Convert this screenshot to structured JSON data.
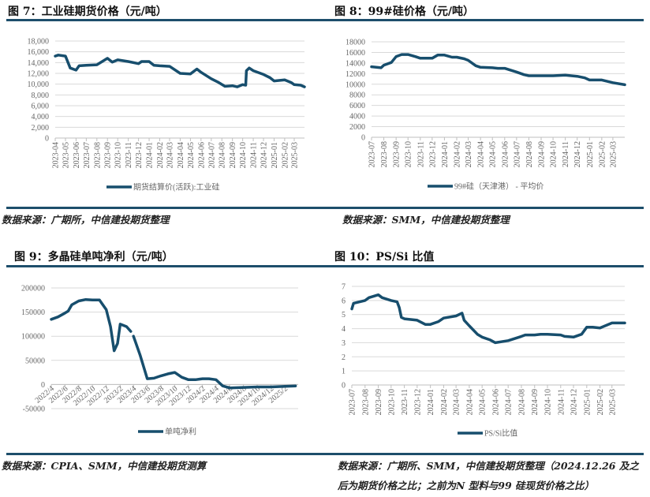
{
  "colors": {
    "line": "#174e6d",
    "rule": "#1d4e6b",
    "grid": "#d9d9d9"
  },
  "panels": [
    {
      "title": "图 7：工业硅期货价格（元/吨）",
      "source": "数据来源：广期所，中信建投期货整理"
    },
    {
      "title": "图 8：99#硅价格（元/吨）",
      "source": "数据来源：SMM，中信建投期货整理"
    },
    {
      "title": "图 9：多晶硅单吨净利（元/吨）",
      "source": "数据来源：CPIA、SMM，中信建投期货测算"
    },
    {
      "title": "图 10：PS/Si 比值",
      "source": "数据来源：广期所、SMM，中信建投期货整理（2024.12.26 及之后为期货价格之比；之前为N 型料与99 硅现货价格之比）"
    }
  ],
  "chart_data": [
    {
      "type": "line",
      "title": "",
      "legend": "期货结算价(活跃):工业硅",
      "legend_position": "bottom",
      "grid": true,
      "ylim": [
        0,
        18000
      ],
      "yticks": [
        0,
        2000,
        4000,
        6000,
        8000,
        10000,
        12000,
        14000,
        16000,
        18000
      ],
      "ytick_labels": [
        "0",
        "2,000",
        "4,000",
        "6,000",
        "8,000",
        "10,000",
        "12,000",
        "14,000",
        "16,000",
        "18,000"
      ],
      "xlim": [
        "2023-04-01",
        "2025-03-31"
      ],
      "xtick_labels": [
        "2023-04",
        "2023-05",
        "2023-06",
        "2023-07",
        "2023-08",
        "2023-09",
        "2023-10",
        "2023-11",
        "2023-12",
        "2024-01",
        "2024-02",
        "2024-03",
        "2024-04",
        "2024-05",
        "2024-06",
        "2024-07",
        "2024-08",
        "2024-09",
        "2024-10",
        "2024-11",
        "2024-12",
        "2025-01",
        "2025-02",
        "2025-03"
      ],
      "x": [
        "2023-04-01",
        "2023-04-10",
        "2023-05-01",
        "2023-05-15",
        "2023-06-01",
        "2023-06-10",
        "2023-07-01",
        "2023-08-01",
        "2023-09-01",
        "2023-09-15",
        "2023-10-01",
        "2023-11-01",
        "2023-12-01",
        "2023-12-10",
        "2024-01-01",
        "2024-01-15",
        "2024-02-01",
        "2024-03-01",
        "2024-04-01",
        "2024-05-01",
        "2024-05-20",
        "2024-06-01",
        "2024-07-01",
        "2024-07-20",
        "2024-08-10",
        "2024-09-01",
        "2024-09-15",
        "2024-10-01",
        "2024-10-10",
        "2024-10-12",
        "2024-10-20",
        "2024-11-01",
        "2024-12-01",
        "2024-12-20",
        "2025-01-01",
        "2025-02-01",
        "2025-02-20",
        "2025-03-01",
        "2025-03-20",
        "2025-03-31"
      ],
      "y": [
        15200,
        15400,
        15200,
        13000,
        12600,
        13400,
        13500,
        13600,
        14800,
        14100,
        14500,
        14200,
        13800,
        14200,
        14200,
        13500,
        13400,
        13300,
        12000,
        11900,
        12800,
        12200,
        11000,
        10400,
        9600,
        9700,
        9500,
        9900,
        9800,
        12500,
        13000,
        12500,
        11800,
        11200,
        10600,
        10800,
        10300,
        9900,
        9800,
        9500
      ]
    },
    {
      "type": "line",
      "title": "",
      "legend": "99#硅（天津港） - 平均价",
      "legend_position": "bottom",
      "grid": true,
      "ylim": [
        0,
        18000
      ],
      "yticks": [
        0,
        2000,
        4000,
        6000,
        8000,
        10000,
        12000,
        14000,
        16000,
        18000
      ],
      "ytick_labels": [
        "0",
        "2000",
        "4000",
        "6000",
        "8000",
        "10000",
        "12000",
        "14000",
        "16000",
        "18000"
      ],
      "xlim": [
        "2023-07-01",
        "2025-03-31"
      ],
      "xtick_labels": [
        "2023-07",
        "2023-08",
        "2023-09",
        "2023-10",
        "2023-11",
        "2023-12",
        "2024-01",
        "2024-02",
        "2024-03",
        "2024-04",
        "2024-05",
        "2024-06",
        "2024-07",
        "2024-08",
        "2024-09",
        "2024-10",
        "2024-11",
        "2024-12",
        "2025-01",
        "2025-02",
        "2025-03"
      ],
      "x": [
        "2023-07-01",
        "2023-07-25",
        "2023-08-01",
        "2023-08-20",
        "2023-09-01",
        "2023-09-15",
        "2023-10-01",
        "2023-10-20",
        "2023-11-01",
        "2023-12-01",
        "2023-12-15",
        "2024-01-01",
        "2024-01-20",
        "2024-02-01",
        "2024-02-20",
        "2024-03-01",
        "2024-03-20",
        "2024-04-01",
        "2024-05-01",
        "2024-05-15",
        "2024-06-01",
        "2024-07-01",
        "2024-07-20",
        "2024-08-01",
        "2024-09-01",
        "2024-10-01",
        "2024-11-01",
        "2024-12-01",
        "2024-12-20",
        "2025-01-01",
        "2025-02-01",
        "2025-03-01",
        "2025-03-31"
      ],
      "y": [
        13300,
        13100,
        13600,
        14100,
        15200,
        15600,
        15600,
        15200,
        14900,
        14900,
        15500,
        15500,
        15100,
        15100,
        14800,
        14500,
        13500,
        13200,
        13100,
        13000,
        13000,
        12300,
        11800,
        11600,
        11600,
        11600,
        11700,
        11500,
        11200,
        10800,
        10800,
        10300,
        9900
      ]
    },
    {
      "type": "line",
      "title": "",
      "legend": "单吨净利",
      "legend_position": "bottom",
      "grid": true,
      "ylim": [
        -50000,
        200000
      ],
      "yticks": [
        -50000,
        0,
        50000,
        100000,
        150000,
        200000
      ],
      "ytick_labels": [
        "-50000",
        "0",
        "50000",
        "100000",
        "150000",
        "200000"
      ],
      "xlim": [
        "2022-04-01",
        "2025-04-01"
      ],
      "xtick_labels": [
        "2022/4",
        "2022/6",
        "2022/8",
        "2022/10",
        "2022/12",
        "2023/2",
        "2023/4",
        "2023/6",
        "2023/8",
        "2023/10",
        "2023/12",
        "2024/2",
        "2024/4",
        "2024/6",
        "2024/8",
        "2024/10",
        "2024/12",
        "2025/2"
      ],
      "x": [
        "2022-04-01",
        "2022-05-01",
        "2022-06-01",
        "2022-06-15",
        "2022-07-01",
        "2022-08-01",
        "2022-09-01",
        "2022-10-01",
        "2022-11-01",
        "2022-12-01",
        "2022-12-20",
        "2023-01-05",
        "2023-01-20",
        "2023-02-01",
        "2023-03-01",
        "2023-03-20",
        null,
        "2023-04-01",
        "2023-05-01",
        "2023-06-01",
        "2023-07-01",
        "2023-08-01",
        "2023-09-01",
        "2023-10-01",
        "2023-11-01",
        "2023-12-01",
        "2024-01-01",
        "2024-02-01",
        "2024-03-01",
        "2024-04-01",
        "2024-05-01",
        "2024-06-01",
        "2024-08-01",
        "2024-10-01",
        "2024-12-01",
        "2025-02-01",
        "2025-03-20"
      ],
      "y": [
        135000,
        140000,
        148000,
        152000,
        165000,
        173000,
        176000,
        175000,
        175000,
        155000,
        120000,
        70000,
        85000,
        125000,
        120000,
        110000,
        null,
        100000,
        60000,
        12000,
        13000,
        18000,
        22000,
        25000,
        15000,
        10000,
        10000,
        12000,
        12000,
        10000,
        -3000,
        -7000,
        -6000,
        -5000,
        -5000,
        -4000,
        -3000
      ]
    },
    {
      "type": "line",
      "title": "",
      "legend": "PS/Si比值",
      "legend_position": "bottom",
      "grid": true,
      "ylim": [
        0,
        7
      ],
      "yticks": [
        0,
        1,
        2,
        3,
        4,
        5,
        6,
        7
      ],
      "ytick_labels": [
        "0",
        "1",
        "2",
        "3",
        "4",
        "5",
        "6",
        "7"
      ],
      "xlim": [
        "2023-07-01",
        "2025-03-31"
      ],
      "xtick_labels": [
        "2023-07",
        "2023-08",
        "2023-09",
        "2023-10",
        "2023-11",
        "2023-12",
        "2024-01",
        "2024-02",
        "2024-03",
        "2024-04",
        "2024-05",
        "2024-06",
        "2024-07",
        "2024-08",
        "2024-09",
        "2024-10",
        "2024-11",
        "2024-12",
        "2025-01",
        "2025-02",
        "2025-03"
      ],
      "x": [
        "2023-07-01",
        "2023-07-05",
        "2023-08-01",
        "2023-08-10",
        "2023-09-01",
        "2023-09-10",
        "2023-10-01",
        "2023-10-15",
        "2023-10-20",
        "2023-10-25",
        "2023-11-01",
        "2023-12-01",
        "2023-12-20",
        "2024-01-01",
        "2024-01-20",
        "2024-02-01",
        "2024-03-01",
        "2024-03-15",
        "2024-03-20",
        "2024-04-01",
        "2024-04-20",
        "2024-05-01",
        "2024-05-20",
        "2024-06-01",
        "2024-07-01",
        "2024-08-01",
        "2024-08-10",
        "2024-09-01",
        "2024-09-15",
        "2024-10-01",
        "2024-11-01",
        "2024-11-10",
        "2024-12-01",
        "2024-12-20",
        "2025-01-01",
        "2025-01-15",
        "2025-02-01",
        "2025-03-01",
        "2025-03-31"
      ],
      "y": [
        5.4,
        5.8,
        6.0,
        6.2,
        6.4,
        6.2,
        6.0,
        5.9,
        5.5,
        4.8,
        4.7,
        4.6,
        4.3,
        4.3,
        4.5,
        4.75,
        4.9,
        5.1,
        4.6,
        4.2,
        3.6,
        3.4,
        3.2,
        3.0,
        3.15,
        3.45,
        3.55,
        3.55,
        3.6,
        3.6,
        3.55,
        3.45,
        3.4,
        3.6,
        4.1,
        4.1,
        4.05,
        4.4,
        4.4
      ]
    }
  ]
}
